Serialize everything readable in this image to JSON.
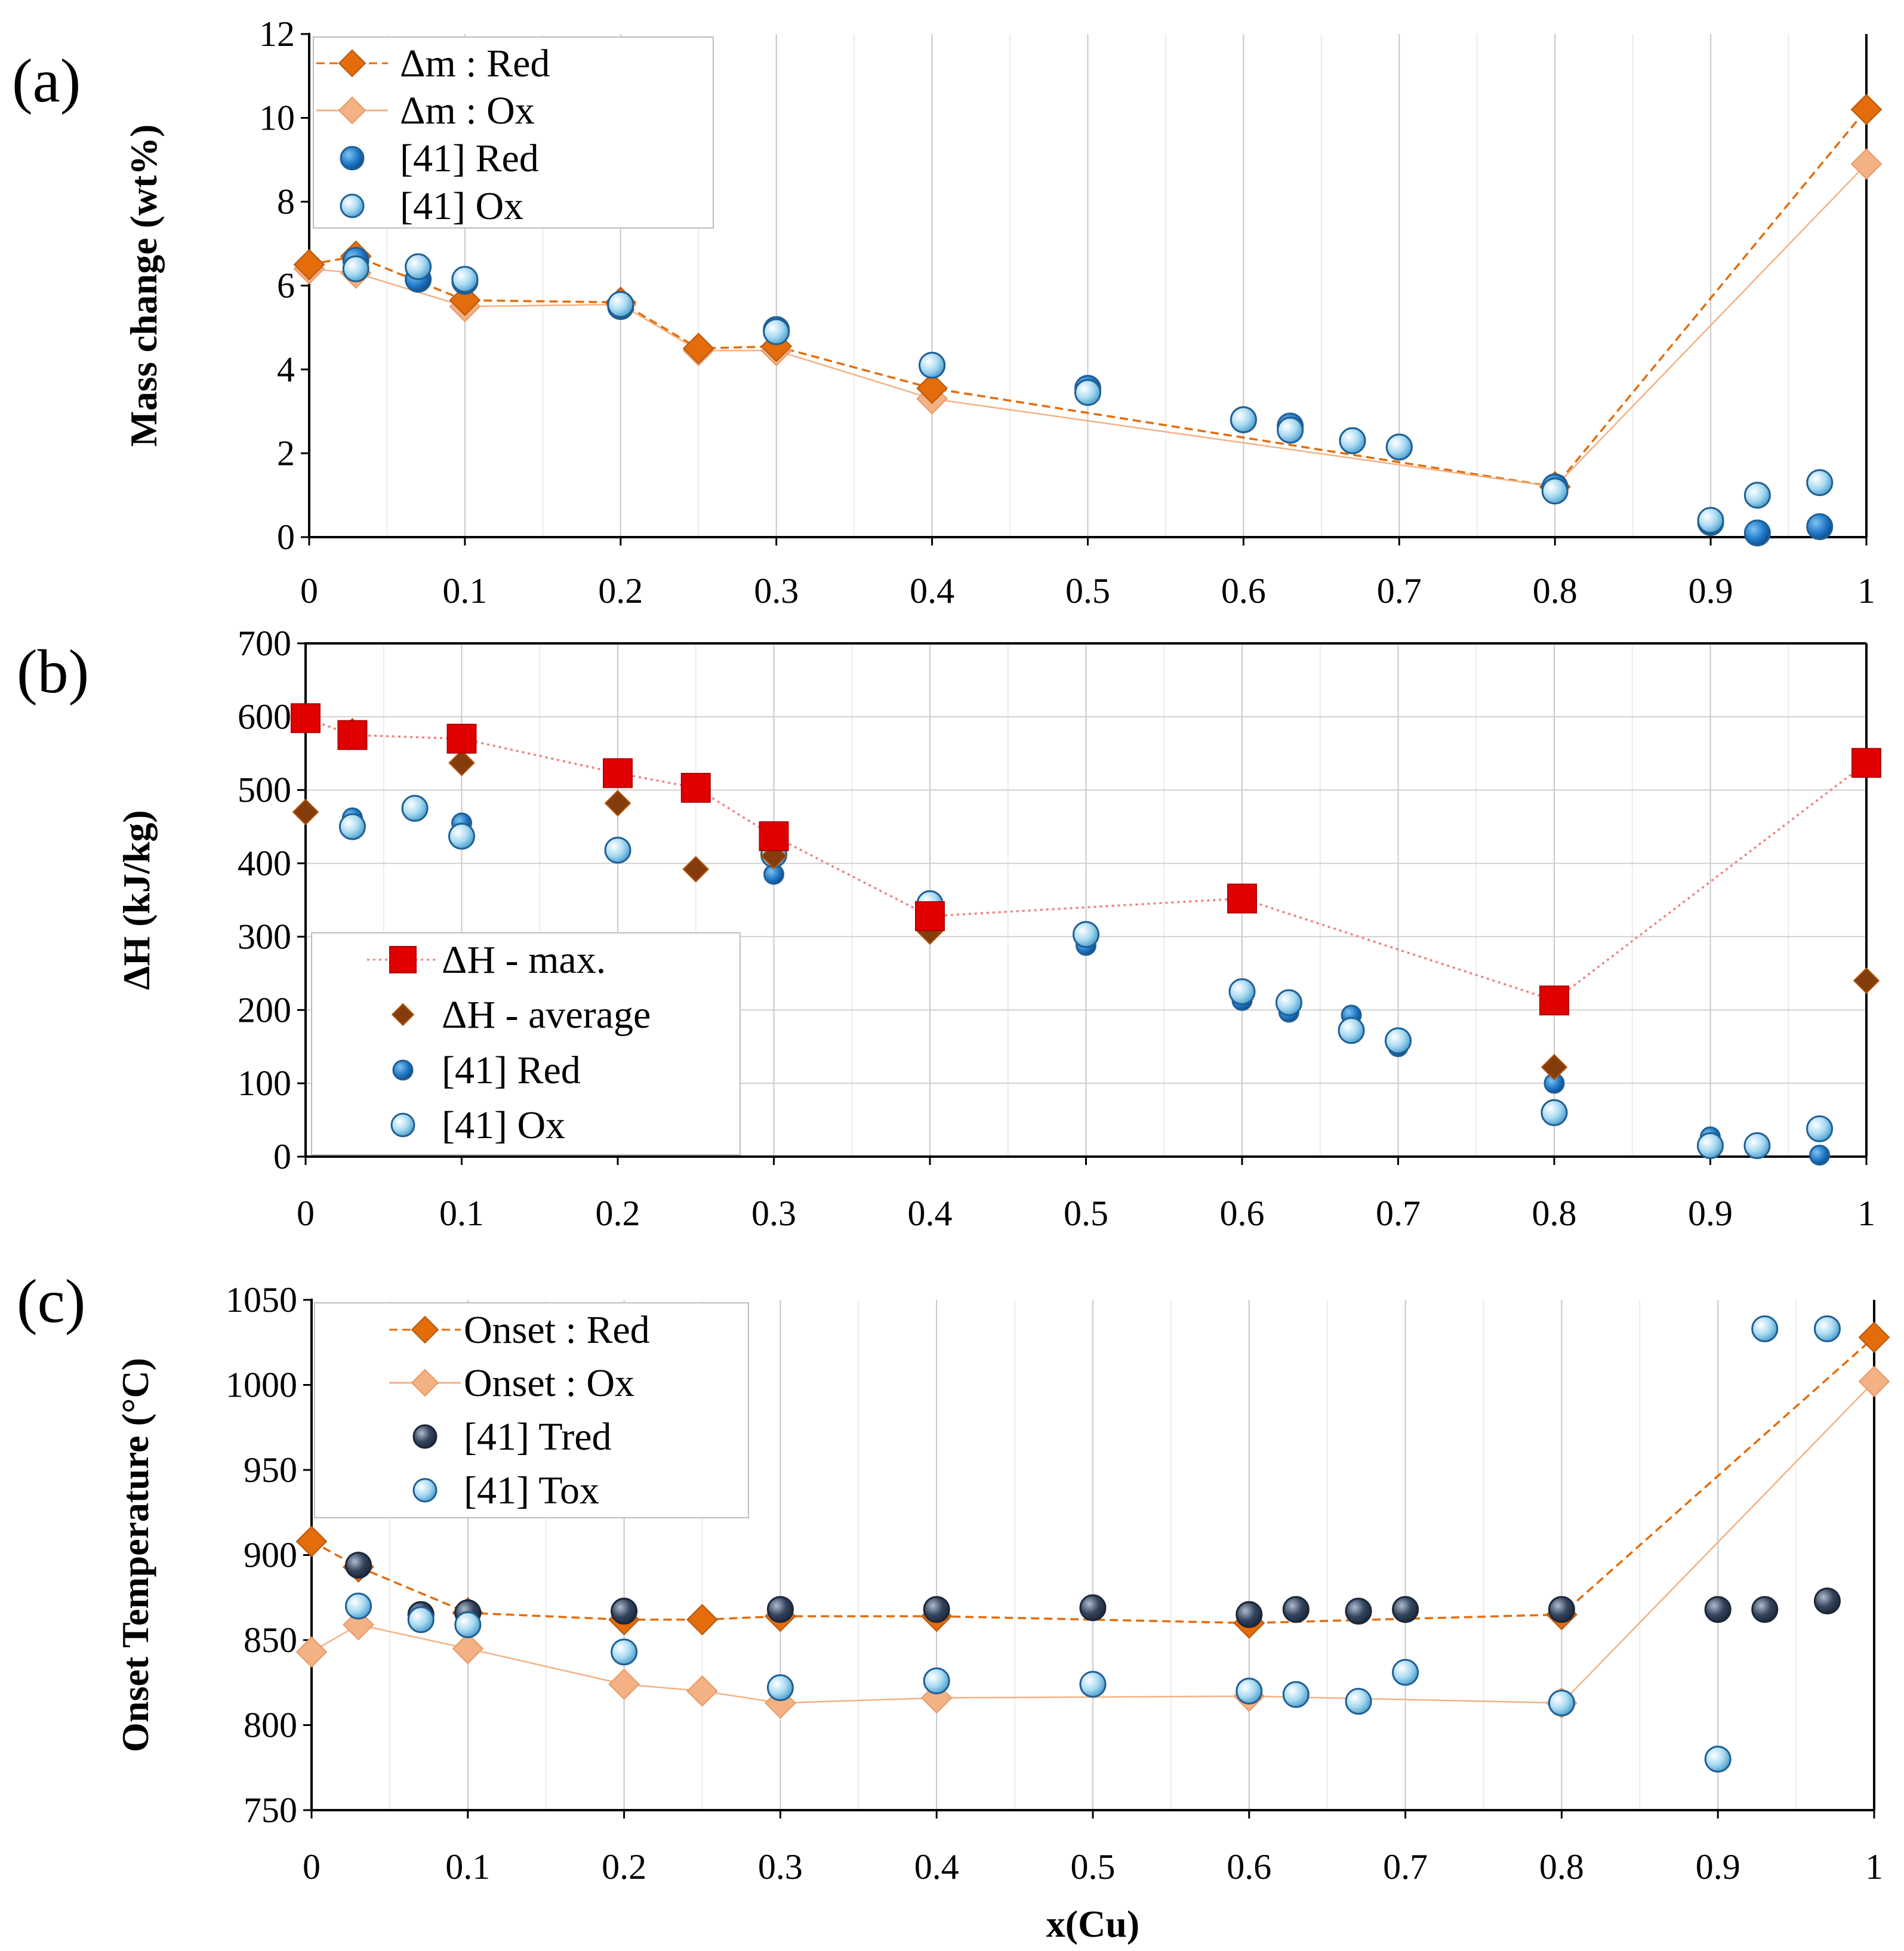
{
  "chart_data": [
    {
      "panel": "(a)",
      "type": "scatter",
      "xlabel": "",
      "ylabel": "Mass change (wt%)",
      "xlim": [
        0,
        1
      ],
      "ylim": [
        0,
        12
      ],
      "xticks": [
        0,
        0.1,
        0.2,
        0.3,
        0.4,
        0.5,
        0.6,
        0.7,
        0.8,
        0.9,
        1
      ],
      "xtick_labels": [
        "0",
        "0.1",
        "0.2",
        "0.3",
        "0.4",
        "0.5",
        "0.6",
        "0.7",
        "0.8",
        "0.9",
        "1"
      ],
      "yticks": [
        0,
        2,
        4,
        6,
        8,
        10,
        12
      ],
      "ytick_labels": [
        "0",
        "2",
        "4",
        "6",
        "8",
        "10",
        "12"
      ],
      "grid": "vertical",
      "legend": "top-left",
      "series": [
        {
          "name": "Δm : Red",
          "marker": "diamond",
          "line": "dashed",
          "color": "#E46C0A",
          "x": [
            0,
            0.03,
            0.1,
            0.2,
            0.25,
            0.3,
            0.4,
            0.8,
            1
          ],
          "y": [
            6.5,
            6.7,
            5.65,
            5.6,
            4.5,
            4.55,
            3.55,
            1.2,
            10.2
          ]
        },
        {
          "name": "Δm : Ox",
          "marker": "diamond",
          "line": "solid",
          "color": "#F4B183",
          "x": [
            0,
            0.03,
            0.1,
            0.2,
            0.25,
            0.3,
            0.4,
            0.8,
            1
          ],
          "y": [
            6.4,
            6.3,
            5.5,
            5.55,
            4.45,
            4.45,
            3.3,
            1.2,
            8.9
          ]
        },
        {
          "name": "[41] Red",
          "marker": "circle",
          "line": "none",
          "color": "#1F78C8",
          "x": [
            0.03,
            0.07,
            0.1,
            0.2,
            0.3,
            0.4,
            0.5,
            0.6,
            0.63,
            0.67,
            0.7,
            0.8,
            0.9,
            0.93,
            0.97
          ],
          "y": [
            6.6,
            6.15,
            6.1,
            5.5,
            4.95,
            4.1,
            3.55,
            2.8,
            2.65,
            2.3,
            2.15,
            1.2,
            0.35,
            0.1,
            0.25
          ]
        },
        {
          "name": "[41] Ox",
          "marker": "circle",
          "line": "none",
          "color": "#9DD3F0",
          "x": [
            0.03,
            0.07,
            0.1,
            0.2,
            0.3,
            0.4,
            0.5,
            0.6,
            0.63,
            0.67,
            0.7,
            0.8,
            0.9,
            0.93,
            0.97
          ],
          "y": [
            6.4,
            6.45,
            6.15,
            5.55,
            4.9,
            4.1,
            3.45,
            2.8,
            2.55,
            2.3,
            2.15,
            1.1,
            0.4,
            1.0,
            1.3
          ]
        }
      ]
    },
    {
      "panel": "(b)",
      "type": "scatter",
      "xlabel": "",
      "ylabel": "ΔH (kJ/kg)",
      "xlim": [
        0,
        1
      ],
      "ylim": [
        0,
        700
      ],
      "xticks": [
        0,
        0.1,
        0.2,
        0.3,
        0.4,
        0.5,
        0.6,
        0.7,
        0.8,
        0.9,
        1
      ],
      "xtick_labels": [
        "0",
        "0.1",
        "0.2",
        "0.3",
        "0.4",
        "0.5",
        "0.6",
        "0.7",
        "0.8",
        "0.9",
        "1"
      ],
      "yticks": [
        0,
        100,
        200,
        300,
        400,
        500,
        600,
        700
      ],
      "ytick_labels": [
        "0",
        "100",
        "200",
        "300",
        "400",
        "500",
        "600",
        "700"
      ],
      "grid": "both",
      "legend": "bottom-left",
      "series": [
        {
          "name": "ΔH - max.",
          "marker": "square",
          "line": "dotted",
          "color": "#E00000",
          "x": [
            0,
            0.03,
            0.1,
            0.2,
            0.25,
            0.3,
            0.4,
            0.6,
            0.8,
            1
          ],
          "y": [
            598,
            575,
            570,
            523,
            503,
            437,
            328,
            352,
            213,
            537
          ]
        },
        {
          "name": "ΔH - average",
          "marker": "diamond",
          "line": "none",
          "color": "#843C0C",
          "x": [
            0,
            0.03,
            0.1,
            0.2,
            0.25,
            0.3,
            0.4,
            0.6,
            0.8,
            1
          ],
          "y": [
            470,
            580,
            537,
            482,
            392,
            410,
            307,
            350,
            122,
            240
          ]
        },
        {
          "name": "[41] Red",
          "marker": "circle",
          "line": "none",
          "color": "#1F6FC6",
          "x": [
            0.03,
            0.07,
            0.1,
            0.2,
            0.3,
            0.4,
            0.5,
            0.6,
            0.63,
            0.67,
            0.7,
            0.8,
            0.9,
            0.93,
            0.97
          ],
          "y": [
            462,
            478,
            455,
            415,
            385,
            315,
            288,
            213,
            197,
            193,
            150,
            100,
            27,
            15,
            2
          ]
        },
        {
          "name": "[41] Ox",
          "marker": "circle",
          "line": "none",
          "color": "#A8D8F0",
          "x": [
            0.03,
            0.07,
            0.1,
            0.2,
            0.3,
            0.4,
            0.5,
            0.6,
            0.63,
            0.67,
            0.7,
            0.8,
            0.9,
            0.93,
            0.97
          ],
          "y": [
            450,
            475,
            437,
            418,
            412,
            345,
            303,
            225,
            210,
            172,
            158,
            60,
            15,
            15,
            38
          ]
        }
      ]
    },
    {
      "panel": "(c)",
      "type": "scatter",
      "xlabel": "x(Cu)",
      "ylabel": "Onset Temperature (°C)",
      "xlim": [
        0,
        1
      ],
      "ylim": [
        750,
        1050
      ],
      "xticks": [
        0,
        0.1,
        0.2,
        0.3,
        0.4,
        0.5,
        0.6,
        0.7,
        0.8,
        0.9,
        1
      ],
      "xtick_labels": [
        "0",
        "0.1",
        "0.2",
        "0.3",
        "0.4",
        "0.5",
        "0.6",
        "0.7",
        "0.8",
        "0.9",
        "1"
      ],
      "yticks": [
        750,
        800,
        850,
        900,
        950,
        1000,
        1050
      ],
      "ytick_labels": [
        "750",
        "800",
        "850",
        "900",
        "950",
        "1000",
        "1050"
      ],
      "grid": "vertical",
      "legend": "top-left",
      "series": [
        {
          "name": "Onset : Red",
          "marker": "diamond",
          "line": "dashed",
          "color": "#E46C0A",
          "x": [
            0,
            0.03,
            0.1,
            0.2,
            0.25,
            0.3,
            0.4,
            0.6,
            0.8,
            1
          ],
          "y": [
            908,
            893,
            866,
            862,
            862,
            864,
            864,
            860,
            865,
            1028
          ]
        },
        {
          "name": "Onset : Ox",
          "marker": "diamond",
          "line": "solid",
          "color": "#F4B183",
          "x": [
            0,
            0.03,
            0.1,
            0.2,
            0.25,
            0.3,
            0.4,
            0.6,
            0.8,
            1
          ],
          "y": [
            843,
            859,
            845,
            824,
            820,
            813,
            816,
            817,
            813,
            1002
          ]
        },
        {
          "name": "[41] Tred",
          "marker": "circle",
          "line": "none",
          "color": "#34455E",
          "x": [
            0.03,
            0.07,
            0.1,
            0.2,
            0.3,
            0.4,
            0.5,
            0.6,
            0.63,
            0.67,
            0.7,
            0.8,
            0.9,
            0.93,
            0.97
          ],
          "y": [
            894,
            865,
            866,
            867,
            868,
            868,
            869,
            865,
            868,
            867,
            868,
            868,
            868,
            868,
            873
          ]
        },
        {
          "name": "[41] Tox",
          "marker": "circle",
          "line": "none",
          "color": "#A8D8F0",
          "x": [
            0.03,
            0.07,
            0.1,
            0.2,
            0.3,
            0.4,
            0.5,
            0.6,
            0.63,
            0.67,
            0.7,
            0.8,
            0.9,
            0.93,
            0.97
          ],
          "y": [
            870,
            862,
            859,
            843,
            822,
            826,
            824,
            820,
            818,
            814,
            831,
            813,
            780,
            1033,
            1033
          ]
        }
      ]
    }
  ]
}
